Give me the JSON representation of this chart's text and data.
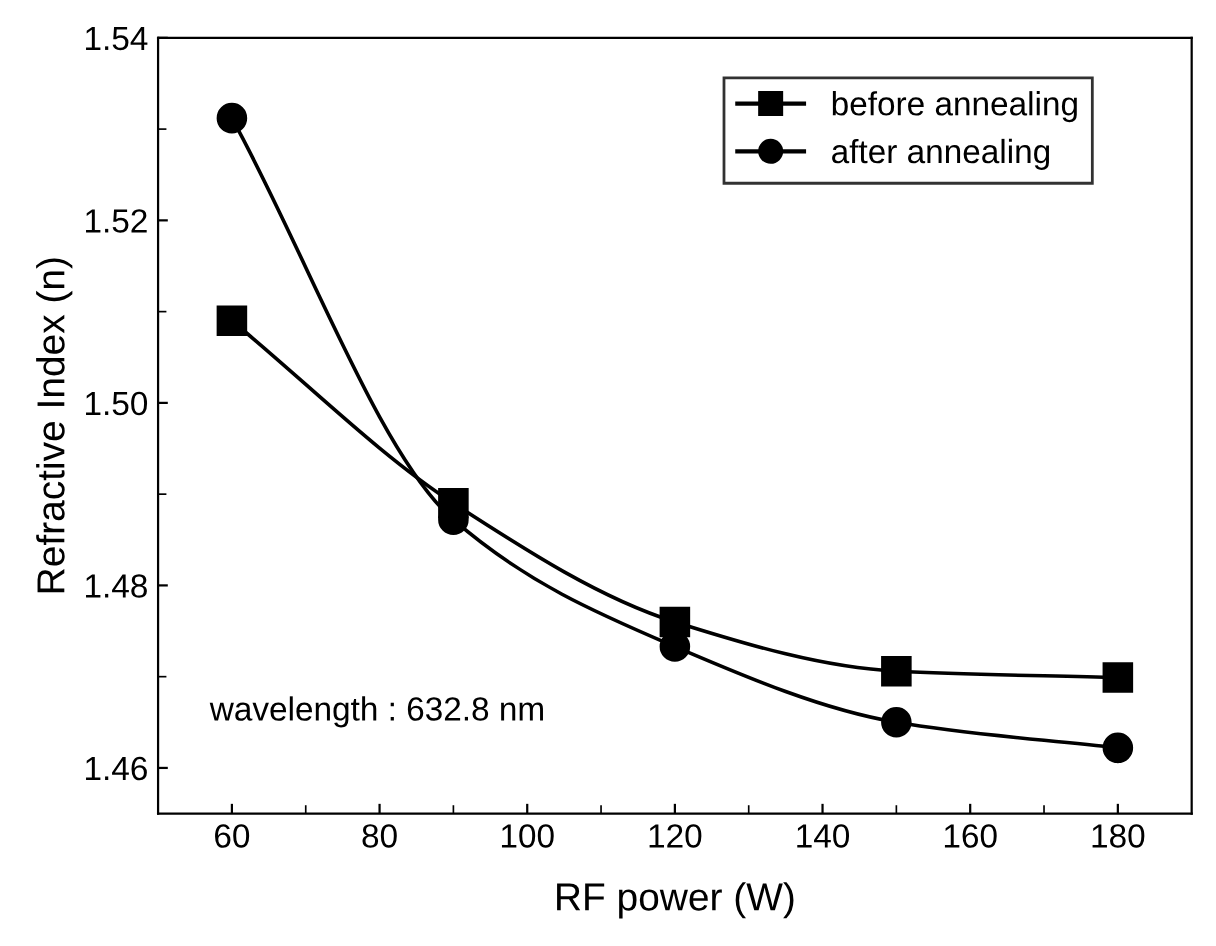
{
  "chart_data": {
    "type": "line",
    "xlabel": "RF power (W)",
    "ylabel": "Refractive Index (n)",
    "x": [
      60,
      90,
      120,
      150,
      180
    ],
    "series": [
      {
        "name": "before annealing",
        "color": "#000000",
        "marker": "square",
        "values": [
          1.509,
          1.489,
          1.476,
          1.4706,
          1.4699
        ]
      },
      {
        "name": "after annealing",
        "color": "#000000",
        "marker": "circle",
        "values": [
          1.5312,
          1.4872,
          1.4733,
          1.465,
          1.4622
        ]
      }
    ],
    "xlim": [
      50,
      190
    ],
    "xticks": [
      60,
      80,
      100,
      120,
      140,
      160,
      180
    ],
    "ylim": [
      1.455,
      1.54
    ],
    "yticks": [
      {
        "value": 1.46,
        "label": "1.46"
      },
      {
        "value": 1.48,
        "label": "1.48"
      },
      {
        "value": 1.5,
        "label": "1.50"
      },
      {
        "value": 1.52,
        "label": "1.52"
      },
      {
        "value": 1.54,
        "label": "1.54"
      }
    ],
    "annotations": [
      "wavelength : 632.8 nm"
    ],
    "legend": "top right",
    "grid": false,
    "line_style": "solid"
  }
}
